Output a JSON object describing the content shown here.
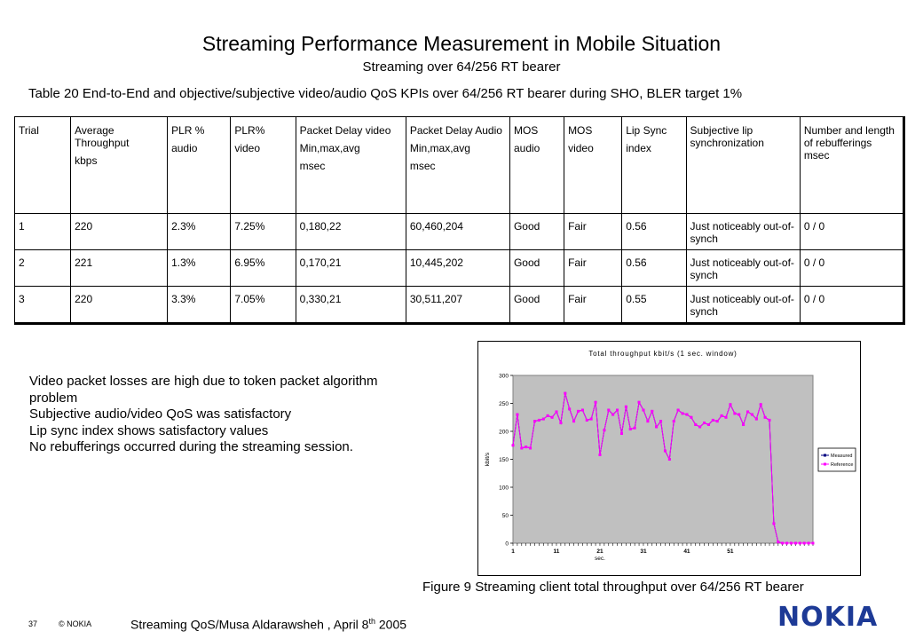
{
  "page": {
    "title": "Streaming Performance Measurement in Mobile Situation",
    "subtitle": "Streaming over 64/256 RT bearer",
    "table_caption": "Table 20 End-to-End and objective/subjective video/audio QoS KPIs over 64/256 RT bearer during SHO, BLER target 1%"
  },
  "table": {
    "headers": [
      [
        "Trial"
      ],
      [
        "Average Throughput",
        "kbps"
      ],
      [
        "PLR %",
        "audio"
      ],
      [
        "PLR%",
        "video"
      ],
      [
        "Packet Delay video",
        "Min,max,avg",
        "msec"
      ],
      [
        "Packet Delay Audio",
        "Min,max,avg",
        "msec"
      ],
      [
        "MOS",
        "audio"
      ],
      [
        "MOS",
        "video"
      ],
      [
        "Lip Sync",
        "index"
      ],
      [
        "Subjective lip synchronization"
      ],
      [
        "Number and length of rebufferings msec"
      ]
    ],
    "rows": [
      [
        "1",
        "220",
        "2.3%",
        "7.25%",
        "0,180,22",
        "60,460,204",
        "Good",
        "Fair",
        "0.56",
        "Just noticeably out-of-synch",
        "0 / 0"
      ],
      [
        "2",
        "221",
        "1.3%",
        "6.95%",
        "0,170,21",
        "10,445,202",
        "Good",
        "Fair",
        "0.56",
        "Just noticeably out-of-synch",
        "0 / 0"
      ],
      [
        "3",
        "220",
        "3.3%",
        "7.05%",
        "0,330,21",
        "30,511,207",
        "Good",
        "Fair",
        "0.55",
        "Just noticeably out-of-synch",
        "0 / 0"
      ]
    ]
  },
  "bullets": [
    "Video packet losses are high due to token packet algorithm problem",
    "Subjective audio/video QoS was satisfactory",
    "Lip sync index shows satisfactory values",
    "No rebufferings occurred during the streaming session."
  ],
  "figure_caption": "Figure 9 Streaming client total throughput over 64/256 RT bearer",
  "footer": {
    "page_number": "37",
    "copyright": "© NOKIA",
    "text_main": "Streaming QoS/Musa Aldarawsheh , April 8",
    "text_sup": "th",
    "text_year": " 2005",
    "logo": "NOKIA"
  },
  "colors": {
    "plot_bg": "#c0c0c0",
    "measured": "#000080",
    "reference": "#ff00ff",
    "logo": "#1d3a96"
  },
  "chart_data": {
    "type": "line",
    "title": "Total throughput kbit/s (1 sec. window)",
    "xlabel": "sec.",
    "ylabel": "kbit/s",
    "ylim": [
      0,
      300
    ],
    "yticks": [
      0,
      50,
      100,
      150,
      200,
      250,
      300
    ],
    "xlim": [
      1,
      70
    ],
    "xticks": [
      1,
      11,
      21,
      31,
      41,
      51
    ],
    "grid": false,
    "legend_position": "right",
    "series": [
      {
        "name": "Measured",
        "x": [
          1,
          2,
          3,
          4,
          5,
          6,
          7,
          8,
          9,
          10,
          11,
          12,
          13,
          14,
          15,
          16,
          17,
          18,
          19,
          20,
          21,
          22,
          23,
          24,
          25,
          26,
          27,
          28,
          29,
          30,
          31,
          32,
          33,
          34,
          35,
          36,
          37,
          38,
          39,
          40,
          41,
          42,
          43,
          44,
          45,
          46,
          47,
          48,
          49,
          50,
          51,
          52,
          53,
          54,
          55,
          56,
          57,
          58,
          59,
          60,
          61,
          62,
          63,
          64,
          65,
          66,
          67,
          68,
          69,
          70
        ],
        "values": [
          175,
          230,
          170,
          172,
          170,
          218,
          220,
          222,
          228,
          225,
          235,
          215,
          268,
          240,
          218,
          236,
          238,
          220,
          222,
          252,
          158,
          202,
          238,
          230,
          238,
          196,
          244,
          204,
          206,
          252,
          238,
          218,
          236,
          208,
          218,
          165,
          150,
          218,
          238,
          232,
          230,
          225,
          212,
          208,
          215,
          212,
          220,
          218,
          228,
          225,
          248,
          232,
          230,
          212,
          235,
          230,
          222,
          248,
          225,
          220,
          35,
          2,
          0,
          0,
          0,
          0,
          0,
          0,
          0,
          0
        ]
      },
      {
        "name": "Reference",
        "x": [
          1,
          2,
          3,
          4,
          5,
          6,
          7,
          8,
          9,
          10,
          11,
          12,
          13,
          14,
          15,
          16,
          17,
          18,
          19,
          20,
          21,
          22,
          23,
          24,
          25,
          26,
          27,
          28,
          29,
          30,
          31,
          32,
          33,
          34,
          35,
          36,
          37,
          38,
          39,
          40,
          41,
          42,
          43,
          44,
          45,
          46,
          47,
          48,
          49,
          50,
          51,
          52,
          53,
          54,
          55,
          56,
          57,
          58,
          59,
          60,
          61,
          62,
          63,
          64,
          65,
          66,
          67,
          68,
          69,
          70
        ],
        "values": [
          175,
          230,
          170,
          172,
          170,
          218,
          220,
          222,
          228,
          225,
          235,
          215,
          268,
          240,
          218,
          236,
          238,
          220,
          222,
          252,
          158,
          202,
          238,
          230,
          238,
          196,
          244,
          204,
          206,
          252,
          238,
          218,
          236,
          208,
          218,
          165,
          150,
          218,
          238,
          232,
          230,
          225,
          212,
          208,
          215,
          212,
          220,
          218,
          228,
          225,
          248,
          232,
          230,
          212,
          235,
          230,
          222,
          248,
          225,
          220,
          35,
          2,
          0,
          0,
          0,
          0,
          0,
          0,
          0,
          0
        ]
      }
    ]
  }
}
